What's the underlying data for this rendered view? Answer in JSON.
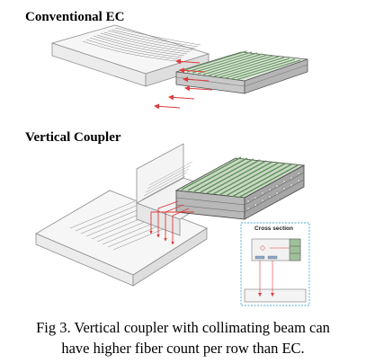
{
  "titles": {
    "conventional": "Conventional EC",
    "vertical": "Vertical Coupler"
  },
  "inset": {
    "label": "Cross section"
  },
  "caption": {
    "line1": "Fig 3. Vertical coupler with collimating beam can",
    "line2": "have higher fiber count per row than EC."
  },
  "colors": {
    "arrow": "#e03a3a",
    "fiber_green": "#8fb08a",
    "chip_outline": "#9a9a9a",
    "inset_border": "#4aa6d8"
  }
}
